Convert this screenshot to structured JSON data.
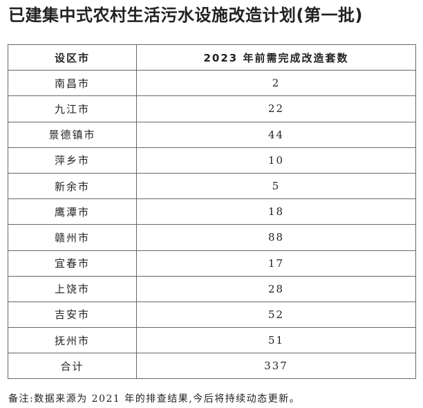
{
  "title": "已建集中式农村生活污水设施改造计划(第一批)",
  "table": {
    "headers": [
      "设区市",
      "2023 年前需完成改造套数"
    ],
    "rows": [
      [
        "南昌市",
        "2"
      ],
      [
        "九江市",
        "22"
      ],
      [
        "景德镇市",
        "44"
      ],
      [
        "萍乡市",
        "10"
      ],
      [
        "新余市",
        "5"
      ],
      [
        "鹰潭市",
        "18"
      ],
      [
        "赣州市",
        "88"
      ],
      [
        "宜春市",
        "17"
      ],
      [
        "上饶市",
        "28"
      ],
      [
        "吉安市",
        "52"
      ],
      [
        "抚州市",
        "51"
      ],
      [
        "合计",
        "337"
      ]
    ]
  },
  "note": "备注:数据来源为 2021 年的排查结果,今后将持续动态更新。"
}
